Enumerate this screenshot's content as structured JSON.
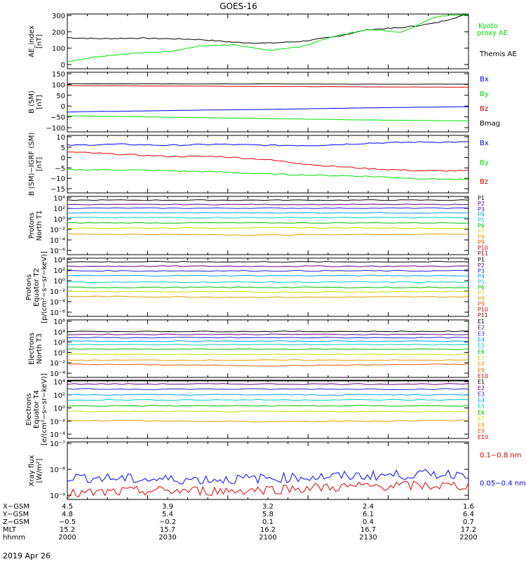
{
  "title": "GOES-16",
  "colors": {
    "black": "#000000",
    "green": "#00e000",
    "blue": "#0000ff",
    "red": "#e00000"
  },
  "panels": [
    {
      "id": "ae",
      "ylabel": [
        "AE_index",
        "[nT]"
      ],
      "ticks": [
        "300",
        "200",
        "100",
        "0"
      ],
      "legend": [
        {
          "text": "Kyoto",
          "color": "#00e000"
        },
        {
          "text": "proxy AE",
          "color": "#00e000"
        },
        {
          "text": "Themis AE",
          "color": "#000000"
        }
      ]
    },
    {
      "id": "bsm",
      "ylabel": [
        "B (SM)",
        "[nT]"
      ],
      "ticks": [
        "150",
        "100",
        "50",
        "0",
        "−50",
        "−100"
      ],
      "legend": [
        {
          "text": "Bx",
          "color": "#0000ff"
        },
        {
          "text": "By",
          "color": "#00e000"
        },
        {
          "text": "Bz",
          "color": "#e00000"
        },
        {
          "text": "Bmag",
          "color": "#000000"
        }
      ]
    },
    {
      "id": "bigrf",
      "ylabel": [
        "B (SM)−IGRF (SM)",
        "[nT]"
      ],
      "ticks": [
        "10",
        "5",
        "0",
        "−5",
        "−10",
        "−15"
      ],
      "legend": [
        {
          "text": "Bx",
          "color": "#0000ff"
        },
        {
          "text": "By",
          "color": "#00e000"
        },
        {
          "text": "Bz",
          "color": "#e00000"
        }
      ]
    },
    {
      "id": "pn",
      "ylabel": [
        "Protons",
        "North T1"
      ],
      "ticks": [
        "10⁴",
        "10²",
        "10⁰",
        "10⁻²",
        "10⁻⁴",
        "10⁻⁶"
      ],
      "channels": [
        "P1",
        "P2",
        "P3",
        "P4",
        "P5",
        "P6",
        "P7",
        "P8",
        "P9",
        "P10",
        "P11"
      ]
    },
    {
      "id": "pe",
      "ylabel": [
        "Protons",
        "Equator T2",
        "[p/(cm²−s−sr−keV)]"
      ],
      "ticks": [
        "10⁴",
        "10²",
        "10⁰",
        "10⁻²",
        "10⁻⁴",
        "10⁻⁶"
      ],
      "channels": [
        "P1",
        "P2",
        "P3",
        "P4",
        "P5",
        "P6",
        "P7",
        "P8",
        "P9",
        "P10",
        "P11"
      ]
    },
    {
      "id": "en",
      "ylabel": [
        "Electrons",
        "North T3"
      ],
      "ticks": [
        "10⁶",
        "10⁴",
        "10²",
        "10⁰",
        "10⁻²",
        "10⁻⁴"
      ],
      "channels": [
        "E1",
        "E2",
        "E3",
        "E4",
        "E5",
        "E6",
        "E7",
        "E8",
        "E9",
        "E10"
      ]
    },
    {
      "id": "ee",
      "ylabel": [
        "Electrons",
        "Equator T4",
        "[e/(cm²−s−sr−keV)]"
      ],
      "ticks": [
        "10⁴",
        "10²",
        "10⁰",
        "10⁻²",
        "10⁻⁴"
      ],
      "channels": [
        "E1",
        "E2",
        "E3",
        "E4",
        "E5",
        "E6",
        "E7",
        "E8",
        "E9",
        "E10"
      ]
    },
    {
      "id": "xray",
      "ylabel": [
        "Xray flux",
        "[W/m²]"
      ],
      "ticks": [
        "10⁻⁷",
        "10⁻⁸",
        "10⁻⁹"
      ],
      "legend": [
        {
          "text": "0.1−0.8 nm",
          "color": "#e00000"
        },
        {
          "text": "0.05−0.4 nm",
          "color": "#0000ff"
        }
      ]
    }
  ],
  "channel_colors": [
    "#000000",
    "#6a0080",
    "#2020e0",
    "#00a0ff",
    "#00d0c0",
    "#00c000",
    "#c0e000",
    "#e0a000",
    "#e06000",
    "#e00000",
    "#a00000"
  ],
  "footer": {
    "rows": [
      {
        "label": "X−GSM",
        "values": [
          "4.5",
          "3.9",
          "3.2",
          "2.4",
          "1.6"
        ]
      },
      {
        "label": "Y−GSM",
        "values": [
          "4.8",
          "5.4",
          "5.8",
          "6.1",
          "6.4"
        ]
      },
      {
        "label": "Z−GSM",
        "values": [
          "−0.5",
          "−0.2",
          "0.1",
          "0.4",
          "0.7"
        ]
      },
      {
        "label": "MLT",
        "values": [
          "15.2",
          "15.7",
          "16.2",
          "16.7",
          "17.2"
        ]
      },
      {
        "label": "hhmm",
        "values": [
          "2000",
          "2030",
          "2100",
          "2130",
          "2200"
        ]
      }
    ],
    "date": "2019 Apr 26"
  },
  "chart_data": [
    {
      "type": "line",
      "title": "GOES-16",
      "ylabel": "AE_index [nT]",
      "ylim": [
        0,
        300
      ],
      "x": [
        "2000",
        "2010",
        "2020",
        "2030",
        "2040",
        "2050",
        "2100",
        "2110",
        "2120",
        "2130",
        "2140",
        "2150",
        "2200"
      ],
      "series": [
        {
          "name": "Themis AE",
          "values": [
            170,
            165,
            168,
            165,
            160,
            145,
            140,
            150,
            175,
            215,
            225,
            250,
            300
          ]
        },
        {
          "name": "Kyoto proxy AE",
          "values": [
            40,
            70,
            85,
            95,
            125,
            130,
            100,
            120,
            180,
            215,
            200,
            285,
            300
          ]
        }
      ]
    },
    {
      "type": "line",
      "ylabel": "B (SM) [nT]",
      "ylim": [
        -110,
        150
      ],
      "x": [
        "2000",
        "2030",
        "2100",
        "2130",
        "2200"
      ],
      "series": [
        {
          "name": "Bmag",
          "values": [
            100,
            99,
            99,
            98,
            98
          ]
        },
        {
          "name": "Bz",
          "values": [
            92,
            90,
            88,
            86,
            85
          ]
        },
        {
          "name": "Bx",
          "values": [
            -23,
            -17,
            -12,
            -5,
            0
          ]
        },
        {
          "name": "By",
          "values": [
            -40,
            -46,
            -52,
            -58,
            -62
          ]
        }
      ]
    },
    {
      "type": "line",
      "ylabel": "B (SM)−IGRF (SM) [nT]",
      "ylim": [
        -16,
        10
      ],
      "x": [
        "2000",
        "2015",
        "2030",
        "2045",
        "2100",
        "2115",
        "2130",
        "2145",
        "2200"
      ],
      "series": [
        {
          "name": "Bx",
          "values": [
            5.5,
            6,
            5.5,
            6,
            5.5,
            5.5,
            6.5,
            7,
            7
          ]
        },
        {
          "name": "Bz",
          "values": [
            2.5,
            1.5,
            0.5,
            0.5,
            -1,
            -3.5,
            -5,
            -6,
            -6
          ]
        },
        {
          "name": "By",
          "values": [
            -5.5,
            -5.5,
            -6,
            -6.5,
            -7.5,
            -8,
            -8.5,
            -9.5,
            -10
          ]
        }
      ]
    },
    {
      "type": "line",
      "ylabel": "Protons North T1",
      "yscale": "log",
      "ylim": [
        1e-07,
        10000.0
      ],
      "series": [
        {
          "name": "P1",
          "values": [
            2000.0,
            2000.0,
            2000.0
          ]
        },
        {
          "name": "P2",
          "values": [
            300,
            300,
            300
          ]
        },
        {
          "name": "P3",
          "values": [
            60,
            60,
            60
          ]
        },
        {
          "name": "P4",
          "values": [
            8,
            8,
            8
          ]
        },
        {
          "name": "P5",
          "values": [
            1,
            1,
            1
          ]
        },
        {
          "name": "P6",
          "values": [
            0.1,
            0.1,
            0.1
          ]
        },
        {
          "name": "P7",
          "values": [
            0.01,
            0.012,
            0.01
          ]
        },
        {
          "name": "P8",
          "values": [
            0.0008,
            0.0005,
            0.0008
          ]
        }
      ]
    },
    {
      "type": "line",
      "ylabel": "Protons Equator T2 [p/(cm²−s−sr−keV)]",
      "yscale": "log",
      "ylim": [
        1e-07,
        10000.0
      ],
      "series": [
        {
          "name": "P1",
          "values": [
            2000.0,
            2000.0,
            2000.0
          ]
        },
        {
          "name": "P2",
          "values": [
            300,
            300,
            300
          ]
        },
        {
          "name": "P3",
          "values": [
            40,
            40,
            40
          ]
        },
        {
          "name": "P4",
          "values": [
            5,
            5,
            5
          ]
        },
        {
          "name": "P5",
          "values": [
            0.3,
            0.3,
            0.3
          ]
        },
        {
          "name": "P6",
          "values": [
            0.03,
            0.03,
            0.03
          ]
        },
        {
          "name": "P7",
          "values": [
            0.005,
            0.004,
            0.005
          ]
        },
        {
          "name": "P8",
          "values": [
            0.0006,
            0.0004,
            0.0005
          ]
        }
      ]
    },
    {
      "type": "line",
      "ylabel": "Electrons North T3",
      "yscale": "log",
      "ylim": [
        0.0001,
        1000000.0
      ],
      "series": [
        {
          "name": "E1",
          "values": [
            10000.0,
            10000.0,
            10000.0
          ]
        },
        {
          "name": "E2",
          "values": [
            3000.0,
            3000.0,
            3000.0
          ]
        },
        {
          "name": "E3",
          "values": [
            800,
            800,
            800
          ]
        },
        {
          "name": "E4",
          "values": [
            200,
            200,
            200
          ]
        },
        {
          "name": "E5",
          "values": [
            50,
            50,
            50
          ]
        },
        {
          "name": "E6",
          "values": [
            8,
            8,
            8
          ]
        },
        {
          "name": "E7",
          "values": [
            1,
            1,
            1
          ]
        },
        {
          "name": "E8",
          "values": [
            0.1,
            0.1,
            0.1
          ]
        },
        {
          "name": "E9",
          "values": [
            0.02,
            0.01,
            0.02
          ]
        }
      ]
    },
    {
      "type": "line",
      "ylabel": "Electrons Equator T4 [e/(cm²−s−sr−keV)]",
      "yscale": "log",
      "ylim": [
        0.0001,
        10000.0
      ],
      "series": [
        {
          "name": "E1",
          "values": [
            10000.0,
            10000.0,
            10000.0
          ]
        },
        {
          "name": "E2",
          "values": [
            3000.0,
            3000.0,
            3000.0
          ]
        },
        {
          "name": "E3",
          "values": [
            600,
            600,
            600
          ]
        },
        {
          "name": "E4",
          "values": [
            100,
            100,
            100
          ]
        },
        {
          "name": "E5",
          "values": [
            20,
            20,
            20
          ]
        },
        {
          "name": "E6",
          "values": [
            3,
            3,
            3
          ]
        },
        {
          "name": "E7",
          "values": [
            0.5,
            0.5,
            0.5
          ]
        },
        {
          "name": "E8",
          "values": [
            0.03,
            0.02,
            0.03
          ]
        }
      ]
    },
    {
      "type": "line",
      "ylabel": "Xray flux [W/m²]",
      "yscale": "log",
      "ylim": [
        1e-09,
        1e-07
      ],
      "series": [
        {
          "name": "0.05−0.4 nm",
          "values": [
            6e-09,
            5e-09,
            5e-09,
            6e-09,
            7e-09,
            8e-09
          ]
        },
        {
          "name": "0.1−0.8 nm",
          "values": [
            1.5e-09,
            2e-09,
            2e-09,
            2.5e-09,
            3e-09,
            3e-09
          ]
        }
      ]
    }
  ]
}
